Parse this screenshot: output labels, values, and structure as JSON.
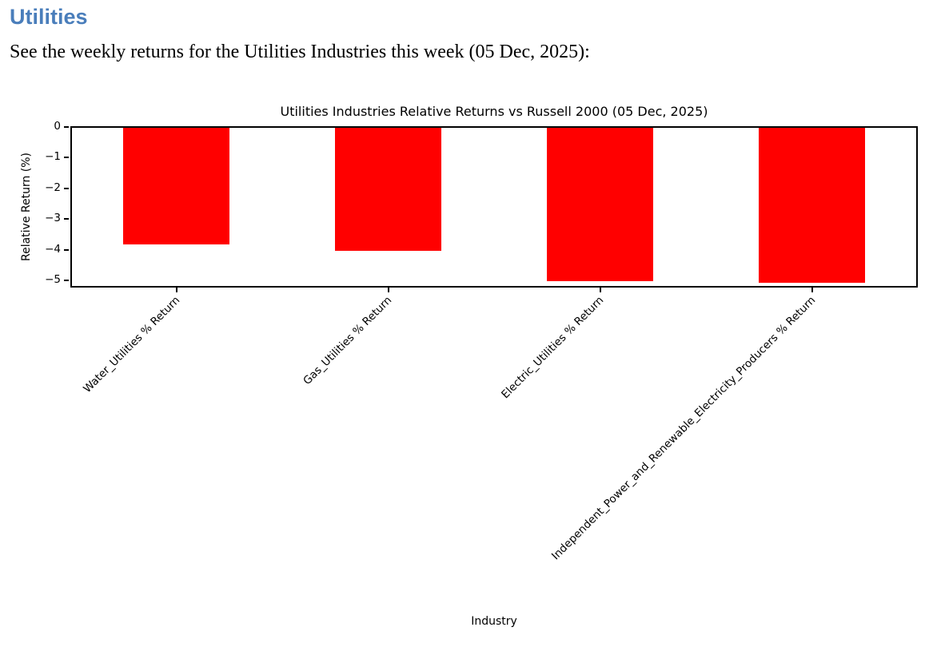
{
  "page": {
    "heading": "Utilities",
    "heading_color": "#4a7ebb",
    "subtitle": "See the weekly returns for the Utilities Industries this week (05 Dec, 2025):"
  },
  "chart_data": {
    "type": "bar",
    "title": "Utilities Industries Relative Returns vs Russell 2000 (05 Dec, 2025)",
    "xlabel": "Industry",
    "ylabel": "Relative Return (%)",
    "categories": [
      "Water_Utilities % Return",
      "Gas_Utilities % Return",
      "Electric_Utilities % Return",
      "Independent_Power_and_Renewable_Electricity_Producers % Return"
    ],
    "values": [
      -3.8,
      -4.0,
      -5.0,
      -5.05
    ],
    "bar_color": "#ff0000",
    "yticks": [
      0,
      -1,
      -2,
      -3,
      -4,
      -5
    ],
    "ylim": [
      -5.26,
      0
    ],
    "grid": false,
    "legend": "none",
    "xtick_rotation_deg": 45,
    "minus_sign": "−"
  }
}
